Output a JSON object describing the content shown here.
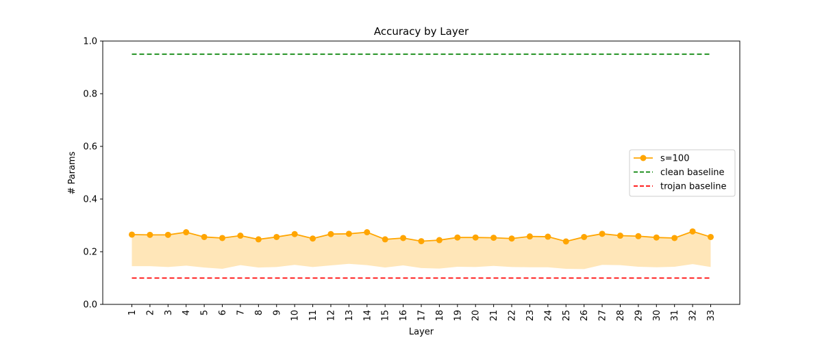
{
  "chart_data": {
    "type": "line",
    "title": "Accuracy by Layer",
    "xlabel": "Layer",
    "ylabel": "# Params",
    "ylim": [
      0,
      1.0
    ],
    "y_ticks": [
      "0.0",
      "0.2",
      "0.4",
      "0.6",
      "0.8",
      "1.0"
    ],
    "categories": [
      "1",
      "2",
      "3",
      "4",
      "5",
      "6",
      "7",
      "8",
      "9",
      "10",
      "11",
      "12",
      "13",
      "14",
      "15",
      "16",
      "17",
      "18",
      "19",
      "20",
      "21",
      "22",
      "23",
      "24",
      "25",
      "26",
      "27",
      "28",
      "29",
      "30",
      "31",
      "32",
      "33"
    ],
    "series": [
      {
        "name": "s=100",
        "color": "#ffa500",
        "marker": "circle",
        "values": [
          0.265,
          0.264,
          0.264,
          0.274,
          0.256,
          0.252,
          0.261,
          0.247,
          0.256,
          0.267,
          0.25,
          0.267,
          0.268,
          0.274,
          0.247,
          0.252,
          0.24,
          0.244,
          0.254,
          0.254,
          0.253,
          0.25,
          0.258,
          0.257,
          0.239,
          0.256,
          0.268,
          0.261,
          0.259,
          0.254,
          0.252,
          0.277,
          0.256
        ],
        "band_lower": [
          0.145,
          0.145,
          0.142,
          0.147,
          0.14,
          0.135,
          0.149,
          0.14,
          0.142,
          0.15,
          0.142,
          0.148,
          0.154,
          0.149,
          0.14,
          0.148,
          0.138,
          0.136,
          0.143,
          0.142,
          0.146,
          0.142,
          0.141,
          0.141,
          0.135,
          0.134,
          0.15,
          0.149,
          0.143,
          0.141,
          0.143,
          0.153,
          0.142
        ]
      }
    ],
    "baselines": [
      {
        "name": "clean baseline",
        "value": 0.95,
        "color": "#008000",
        "style": "dashed"
      },
      {
        "name": "trojan baseline",
        "value": 0.1,
        "color": "#ff0000",
        "style": "dashed"
      }
    ],
    "band_color": "#ffa500",
    "grid": false,
    "legend_position": "center-right",
    "legend": [
      "s=100",
      "clean baseline",
      "trojan baseline"
    ]
  }
}
